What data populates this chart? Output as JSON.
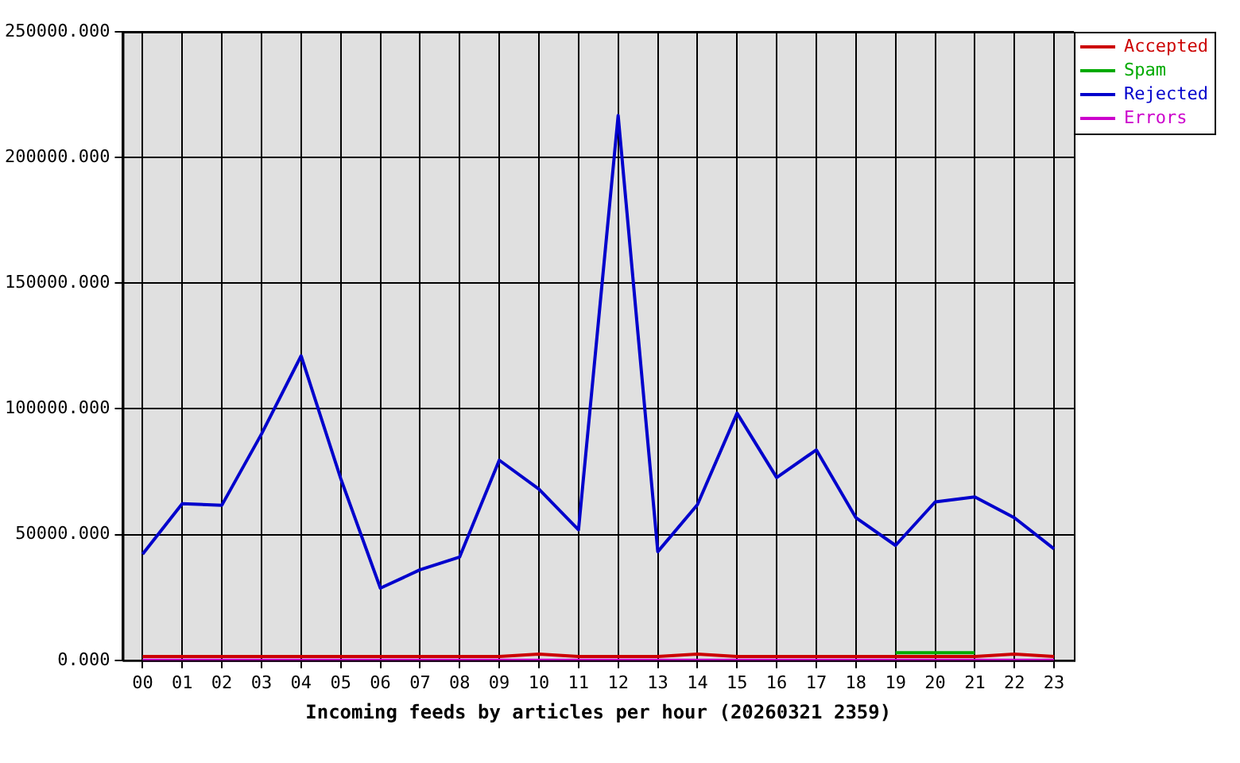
{
  "chart_data": {
    "type": "line",
    "xlabel": "Incoming feeds by articles per hour (20260321 2359)",
    "categories": [
      "00",
      "01",
      "02",
      "03",
      "04",
      "05",
      "06",
      "07",
      "08",
      "09",
      "10",
      "11",
      "12",
      "13",
      "14",
      "15",
      "16",
      "17",
      "18",
      "19",
      "20",
      "21",
      "22",
      "23"
    ],
    "series": [
      {
        "name": "Accepted",
        "color": "#cc0000",
        "values": [
          1500,
          1500,
          1500,
          1500,
          1500,
          1500,
          1500,
          1500,
          1500,
          1500,
          2500,
          1500,
          1500,
          1500,
          2500,
          1500,
          1500,
          1500,
          1500,
          1500,
          1500,
          1500,
          2500,
          1500
        ]
      },
      {
        "name": "Spam",
        "color": "#00aa00",
        "values": [
          null,
          null,
          null,
          null,
          null,
          null,
          null,
          null,
          null,
          null,
          null,
          null,
          null,
          null,
          null,
          null,
          null,
          null,
          null,
          3000,
          3000,
          3000,
          null,
          null
        ]
      },
      {
        "name": "Rejected",
        "color": "#0000cc",
        "values": [
          42200,
          62300,
          61700,
          90000,
          121100,
          72300,
          28700,
          36000,
          41100,
          79600,
          68100,
          51900,
          216700,
          43200,
          61900,
          98300,
          72700,
          83700,
          56700,
          45700,
          63000,
          65000,
          56700,
          44300
        ]
      },
      {
        "name": "Errors",
        "color": "#cc00cc",
        "values": [
          0,
          0,
          0,
          0,
          0,
          0,
          0,
          0,
          0,
          0,
          0,
          0,
          0,
          0,
          0,
          0,
          0,
          0,
          0,
          0,
          0,
          0,
          0,
          0
        ]
      }
    ],
    "ylim": [
      0,
      250000
    ],
    "yticks": [
      {
        "value": 0,
        "label": "0.000"
      },
      {
        "value": 50000,
        "label": "50000.000"
      },
      {
        "value": 100000,
        "label": "100000.000"
      },
      {
        "value": 150000,
        "label": "150000.000"
      },
      {
        "value": 200000,
        "label": "200000.000"
      },
      {
        "value": 250000,
        "label": "250000.000"
      }
    ],
    "grid": true,
    "legend": "top right",
    "marker": "none",
    "line_style": "solid"
  }
}
